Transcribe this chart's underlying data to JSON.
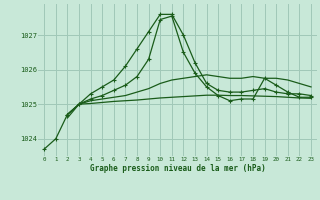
{
  "background_color": "#c8e8d8",
  "grid_color": "#a0c8b8",
  "line_color": "#1a5c1a",
  "title": "Graphe pression niveau de la mer (hPa)",
  "xlim": [
    -0.5,
    23.5
  ],
  "ylim": [
    1023.5,
    1027.9
  ],
  "yticks": [
    1024,
    1025,
    1026,
    1027
  ],
  "xticks": [
    0,
    1,
    2,
    3,
    4,
    5,
    6,
    7,
    8,
    9,
    10,
    11,
    12,
    13,
    14,
    15,
    16,
    17,
    18,
    19,
    20,
    21,
    22,
    23
  ],
  "series": [
    {
      "x": [
        0,
        1,
        2,
        3,
        4,
        5,
        6,
        7,
        8,
        9,
        10,
        11,
        12,
        13,
        14,
        15,
        16,
        17,
        18,
        19,
        20,
        21,
        22,
        23
      ],
      "y": [
        1023.7,
        1024.0,
        1024.7,
        1025.0,
        1025.3,
        1025.5,
        1025.7,
        1026.1,
        1026.6,
        1027.1,
        1027.6,
        1027.6,
        1027.0,
        1026.2,
        1025.6,
        1025.4,
        1025.35,
        1025.35,
        1025.4,
        1025.45,
        1025.35,
        1025.3,
        1025.3,
        1025.25
      ],
      "marker": "+",
      "lw": 0.9
    },
    {
      "x": [
        2,
        3,
        4,
        5,
        6,
        7,
        8,
        9,
        10,
        11,
        12,
        13,
        14,
        15,
        16,
        17,
        18,
        19,
        20,
        21,
        22,
        23
      ],
      "y": [
        1024.7,
        1025.0,
        1025.15,
        1025.25,
        1025.4,
        1025.55,
        1025.8,
        1026.3,
        1027.45,
        1027.55,
        1026.5,
        1025.9,
        1025.5,
        1025.25,
        1025.1,
        1025.15,
        1025.15,
        1025.75,
        1025.55,
        1025.35,
        1025.2,
        1025.2
      ],
      "marker": "+",
      "lw": 0.9
    },
    {
      "x": [
        2,
        3,
        4,
        5,
        6,
        7,
        8,
        9,
        10,
        11,
        12,
        13,
        14,
        15,
        16,
        17,
        18,
        19,
        20,
        21,
        22,
        23
      ],
      "y": [
        1024.7,
        1025.0,
        1025.1,
        1025.15,
        1025.2,
        1025.25,
        1025.35,
        1025.45,
        1025.6,
        1025.7,
        1025.75,
        1025.8,
        1025.85,
        1025.8,
        1025.75,
        1025.75,
        1025.8,
        1025.75,
        1025.75,
        1025.7,
        1025.6,
        1025.5
      ],
      "marker": null,
      "lw": 0.9
    },
    {
      "x": [
        2,
        3,
        4,
        5,
        6,
        7,
        8,
        9,
        10,
        11,
        12,
        13,
        14,
        15,
        16,
        17,
        18,
        19,
        20,
        21,
        22,
        23
      ],
      "y": [
        1024.6,
        1025.0,
        1025.02,
        1025.05,
        1025.08,
        1025.1,
        1025.12,
        1025.15,
        1025.18,
        1025.2,
        1025.22,
        1025.24,
        1025.26,
        1025.26,
        1025.25,
        1025.25,
        1025.24,
        1025.23,
        1025.22,
        1025.2,
        1025.18,
        1025.17
      ],
      "marker": null,
      "lw": 0.9
    }
  ]
}
